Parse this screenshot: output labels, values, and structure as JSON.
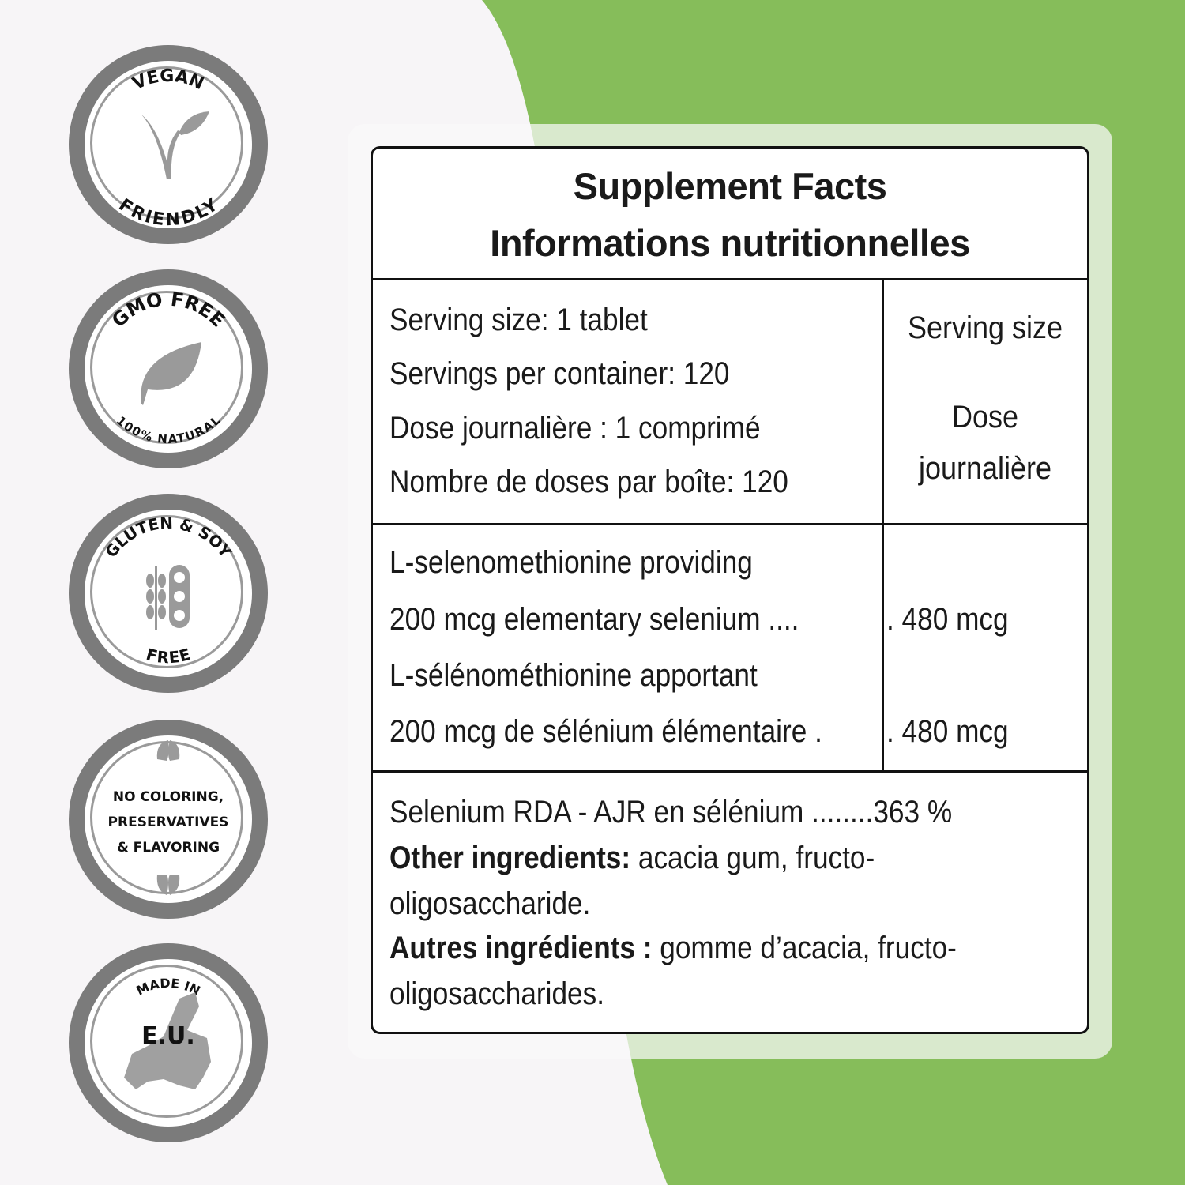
{
  "colors": {
    "accent_green": "#86bd5a",
    "badge_gray": "#7b7b7b",
    "background": "#f7f5f7"
  },
  "badges": [
    {
      "top": "VEGAN",
      "bottom": "FRIENDLY",
      "icon": "vegan-v-leaf-icon"
    },
    {
      "top": "GMO FREE",
      "bottom": "100% NATURAL",
      "icon": "leaf-icon"
    },
    {
      "top": "GLUTEN & SOY",
      "bottom": "FREE",
      "icon": "wheat-soy-icon"
    },
    {
      "lines": [
        "NO COLORING,",
        "PRESERVATIVES",
        "& FLAVORING"
      ],
      "icon": "leaves-icon"
    },
    {
      "top": "MADE IN",
      "center": "E.U.",
      "icon": "europe-map-icon"
    }
  ],
  "label": {
    "title_en": "Supplement Facts",
    "title_fr": "Informations nutritionnelles",
    "serving": [
      "Serving size: 1 tablet",
      "Servings per container: 120",
      "Dose journalière : 1 comprimé",
      "Nombre de doses par boîte: 120"
    ],
    "col_header": {
      "en": "Serving size",
      "fr_1": "Dose",
      "fr_2": "journalière"
    },
    "ingredients": [
      {
        "line1": "L-selenomethionine providing",
        "line2": "200 mcg elementary selenium  ....",
        "amount": ". 480 mcg"
      },
      {
        "line1": "L-sélénométhionine apportant",
        "line2": "200 mcg de sélénium élémentaire .",
        "amount": ". 480 mcg"
      }
    ],
    "rda": "Selenium RDA - AJR en sélénium  ........363 %",
    "other_en_label": "Other ingredients:",
    "other_en_text": " acacia gum, fructo-",
    "other_en_text2": "oligosaccharide.",
    "other_fr_label": "Autres ingrédients :",
    "other_fr_text": " gomme d’acacia, fructo-",
    "other_fr_text2": "oligosaccharides."
  }
}
